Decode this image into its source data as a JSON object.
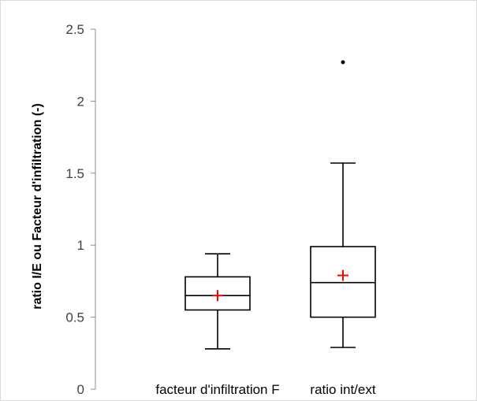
{
  "chart_data": {
    "type": "box",
    "title": "",
    "xlabel": "",
    "ylabel": "ratio I/E ou Facteur d'infiltration (-)",
    "ylim": [
      0,
      2.5
    ],
    "yticks": [
      0,
      0.5,
      1,
      1.5,
      2,
      2.5
    ],
    "ytick_labels": [
      "0",
      "0.5",
      "1",
      "1.5",
      "2",
      "2.5"
    ],
    "grid": false,
    "legend": "none",
    "categories": [
      "facteur d'infiltration F",
      "ratio int/ext"
    ],
    "boxes": [
      {
        "category": "facteur d'infiltration F",
        "whisker_low": 0.28,
        "q1": 0.55,
        "median": 0.65,
        "q3": 0.78,
        "whisker_high": 0.94,
        "mean": 0.65,
        "outliers": []
      },
      {
        "category": "ratio int/ext",
        "whisker_low": 0.29,
        "q1": 0.5,
        "median": 0.74,
        "q3": 0.99,
        "whisker_high": 1.57,
        "mean": 0.79,
        "outliers": [
          2.27
        ]
      }
    ],
    "colors": {
      "box_stroke": "#000000",
      "mean_marker": "#ff0000",
      "axis": "#8c8c8c",
      "frame": "#d9d9d9"
    }
  }
}
